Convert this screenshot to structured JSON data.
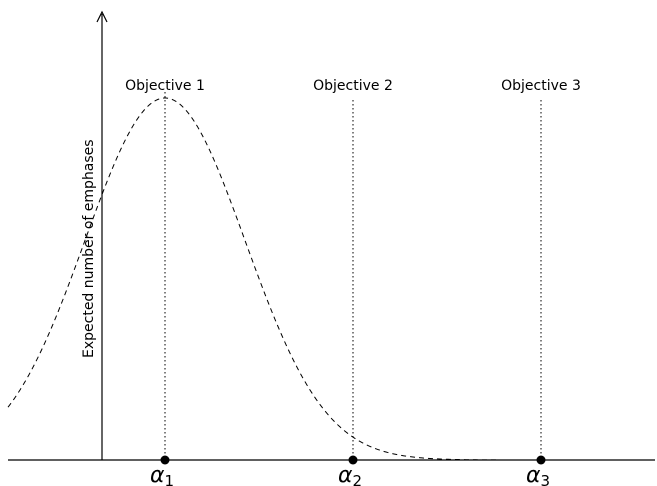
{
  "diagram": {
    "y_axis_label": "Expected number of emphases",
    "objectives": [
      {
        "label": "Objective 1",
        "alpha": "α",
        "sub": "1"
      },
      {
        "label": "Objective 2",
        "alpha": "α",
        "sub": "2"
      },
      {
        "label": "Objective 3",
        "alpha": "α",
        "sub": "3"
      }
    ],
    "curve": {
      "style": "dashed",
      "shape": "bell curve peaking at Objective 1 and tapering to near zero by Objective 3"
    },
    "colors": {
      "line": "#000000",
      "background": "#ffffff"
    }
  }
}
